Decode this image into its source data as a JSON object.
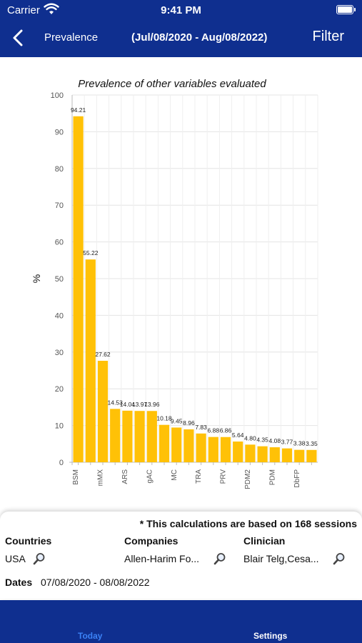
{
  "status_bar": {
    "carrier": "Carrier",
    "time": "9:41 PM"
  },
  "nav": {
    "back_icon": "chevron-left-icon",
    "title": "Prevalence",
    "dates": "(Jul/08/2020 - Aug/08/2022)",
    "filter_label": "Filter"
  },
  "chart_data": {
    "type": "bar",
    "title": "Prevalence of other variables evaluated",
    "ylabel": "%",
    "xlabel": "",
    "ylim": [
      0,
      100
    ],
    "yticks": [
      0,
      10,
      20,
      30,
      40,
      50,
      60,
      70,
      80,
      90,
      100
    ],
    "categories": [
      "BSM",
      "",
      "mMX",
      "",
      "ARS",
      "",
      "gAC",
      "",
      "MC",
      "",
      "TRA",
      "",
      "PRV",
      "",
      "PDM2",
      "",
      "PDM",
      "",
      "DbFP",
      ""
    ],
    "values": [
      94.21,
      55.22,
      27.62,
      14.53,
      14.04,
      13.97,
      13.96,
      10.18,
      9.45,
      8.96,
      7.83,
      6.88,
      6.86,
      5.64,
      4.8,
      4.35,
      4.08,
      3.77,
      3.38,
      3.35
    ],
    "value_labels": [
      "94.21",
      "55.22",
      "27.62",
      "14.53",
      "14.04",
      "13.97",
      "13.96",
      "10.18",
      "9.45",
      "8.96",
      "7.83",
      "6.88",
      "6.86",
      "5.64",
      "4.80",
      "4.35",
      "4.08",
      "3.77",
      "3.38",
      "3.35"
    ],
    "grid": true,
    "bar_color": "#ffc107"
  },
  "summary": {
    "note": "* This calculations are based on 168 sessions",
    "countries_label": "Countries",
    "countries_value": "USA",
    "companies_label": "Companies",
    "companies_value": "Allen-Harim Fo...",
    "clinician_label": "Clinician",
    "clinician_value": "Blair Telg,Cesa...",
    "dates_label": "Dates",
    "dates_value": "07/08/2020 - 08/08/2022"
  },
  "tabbar": {
    "today_label": "Today",
    "settings_label": "Settings",
    "active_color": "#3b82f6"
  },
  "colors": {
    "header": "#0f2f8f",
    "bar": "#ffc107"
  }
}
